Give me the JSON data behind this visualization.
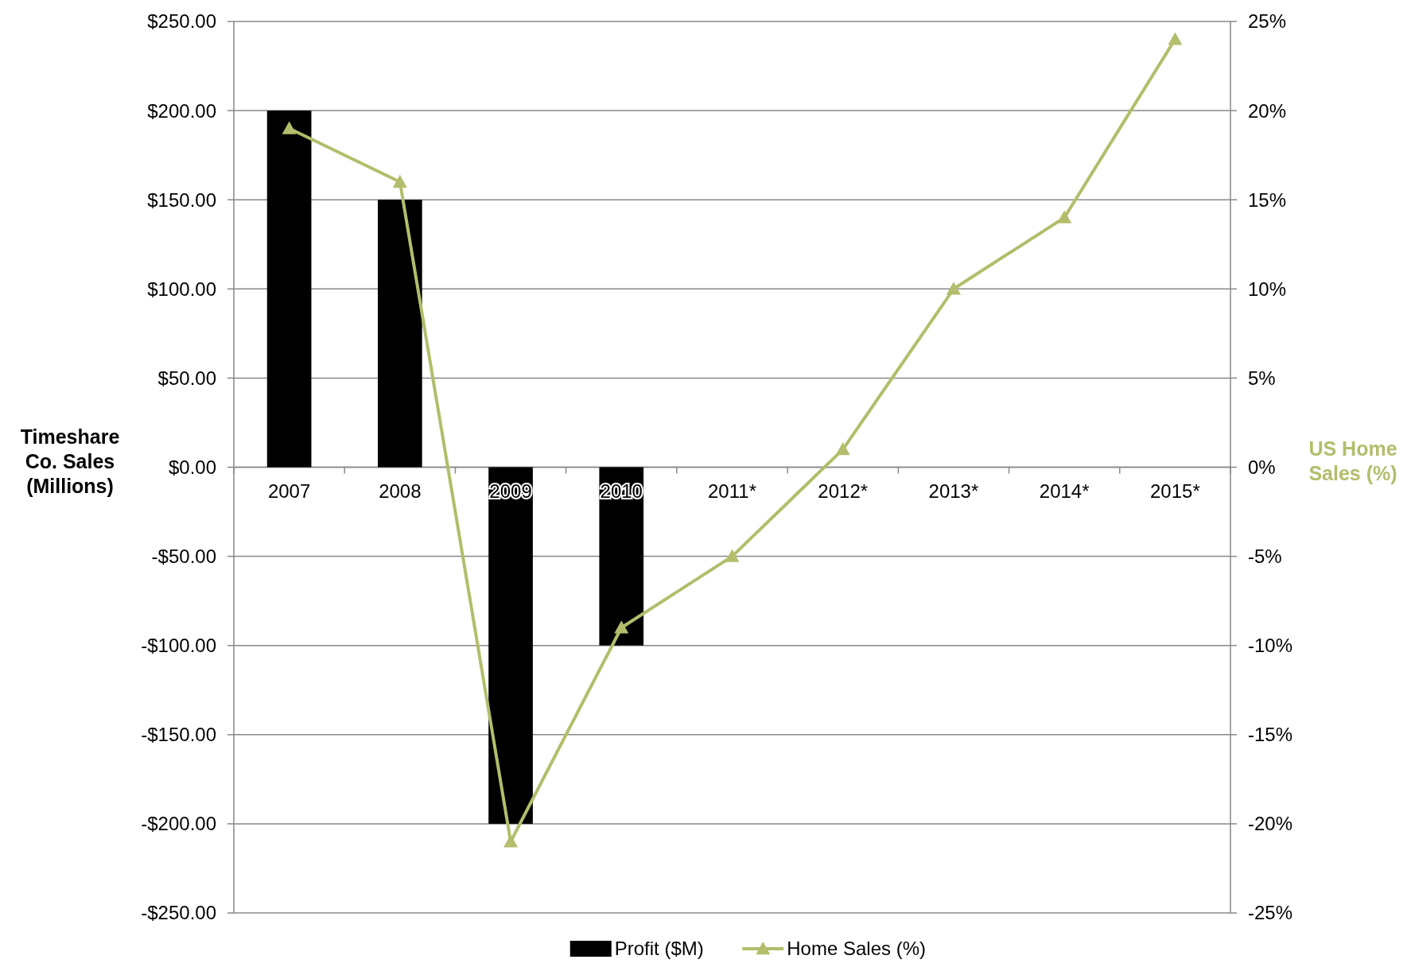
{
  "chart_data": {
    "type": "bar",
    "ylabel": "Timeshare Co. Sales (Millions)",
    "y2label": "US Home Sales (%)",
    "categories": [
      "2007",
      "2008",
      "2009",
      "2010",
      "2011*",
      "2012*",
      "2013*",
      "2014*",
      "2015*"
    ],
    "series": [
      {
        "name": "Profit ($M)",
        "color": "#000000",
        "values": [
          200,
          150,
          -200,
          -100,
          null,
          null,
          null,
          null,
          null
        ]
      },
      {
        "name": "Home Sales (%)",
        "type": "line",
        "axis": "y2",
        "color": "#b3bd6b",
        "marker": "triangle",
        "values": [
          19,
          16,
          -21,
          -9,
          -5,
          1,
          10,
          14,
          24
        ]
      }
    ],
    "ylim": [
      -250,
      250
    ],
    "yticks": [
      {
        "value": -250,
        "label": "-$250.00"
      },
      {
        "value": -200,
        "label": "-$200.00"
      },
      {
        "value": -150,
        "label": "-$150.00"
      },
      {
        "value": -100,
        "label": "-$100.00"
      },
      {
        "value": -50,
        "label": "-$50.00"
      },
      {
        "value": 0,
        "label": "$0.00"
      },
      {
        "value": 50,
        "label": "$50.00"
      },
      {
        "value": 100,
        "label": "$100.00"
      },
      {
        "value": 150,
        "label": "$150.00"
      },
      {
        "value": 200,
        "label": "$200.00"
      },
      {
        "value": 250,
        "label": "$250.00"
      }
    ],
    "y2lim": [
      -25,
      25
    ],
    "y2ticks": [
      {
        "value": -25,
        "label": "-25%"
      },
      {
        "value": -20,
        "label": "-20%"
      },
      {
        "value": -15,
        "label": "-15%"
      },
      {
        "value": -10,
        "label": "-10%"
      },
      {
        "value": -5,
        "label": "-5%"
      },
      {
        "value": 0,
        "label": "0%"
      },
      {
        "value": 5,
        "label": "5%"
      },
      {
        "value": 10,
        "label": "10%"
      },
      {
        "value": 15,
        "label": "15%"
      },
      {
        "value": 20,
        "label": "20%"
      },
      {
        "value": 25,
        "label": "25%"
      }
    ],
    "grid": "y",
    "legend": "bottom"
  }
}
